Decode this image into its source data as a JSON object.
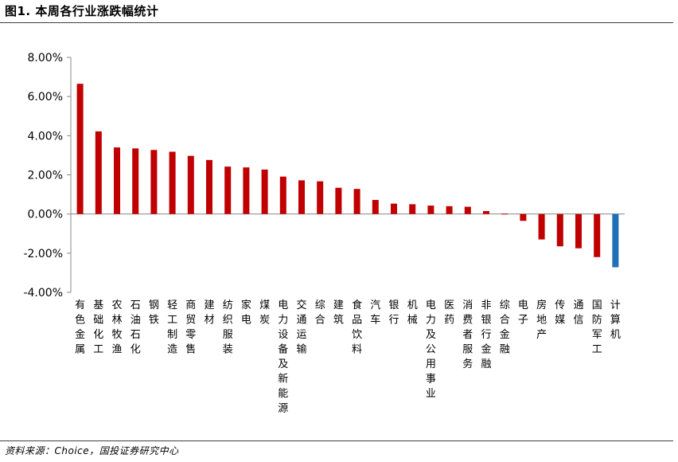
{
  "title": "图1. 本周各行业涨跌幅统计",
  "source": "资料来源：Choice，国投证券研究中心",
  "colors": {
    "positive": "#c00000",
    "highlight": "#1f6fb8",
    "axis": "#888888"
  },
  "chart_data": {
    "type": "bar",
    "categories": [
      "有色金属",
      "基础化工",
      "农林牧渔",
      "石油石化",
      "钢铁",
      "轻工制造",
      "商贸零售",
      "建材",
      "纺织服装",
      "家电",
      "煤炭",
      "电力设备及新能源",
      "交通运输",
      "综合",
      "建筑",
      "食品饮料",
      "汽车",
      "银行",
      "机械",
      "电力及公用事业",
      "医药",
      "消费者服务",
      "非银行金融",
      "综合金融",
      "电子",
      "房地产",
      "传媒",
      "通信",
      "国防军工",
      "计算机"
    ],
    "values": [
      6.65,
      4.22,
      3.4,
      3.35,
      3.27,
      3.18,
      2.97,
      2.76,
      2.42,
      2.38,
      2.27,
      1.91,
      1.72,
      1.67,
      1.34,
      1.28,
      0.72,
      0.53,
      0.5,
      0.43,
      0.4,
      0.37,
      0.15,
      0.02,
      -0.35,
      -1.3,
      -1.65,
      -1.75,
      -2.2,
      -2.72
    ],
    "highlight_index": 29,
    "ylim": [
      -4,
      8
    ],
    "yticks": [
      -4,
      -2,
      0,
      2,
      4,
      6,
      8
    ],
    "ytick_labels": [
      "-4.00%",
      "-2.00%",
      "0.00%",
      "2.00%",
      "4.00%",
      "6.00%",
      "8.00%"
    ],
    "xlabel": "",
    "ylabel": "",
    "grid": false,
    "legend": "none"
  }
}
